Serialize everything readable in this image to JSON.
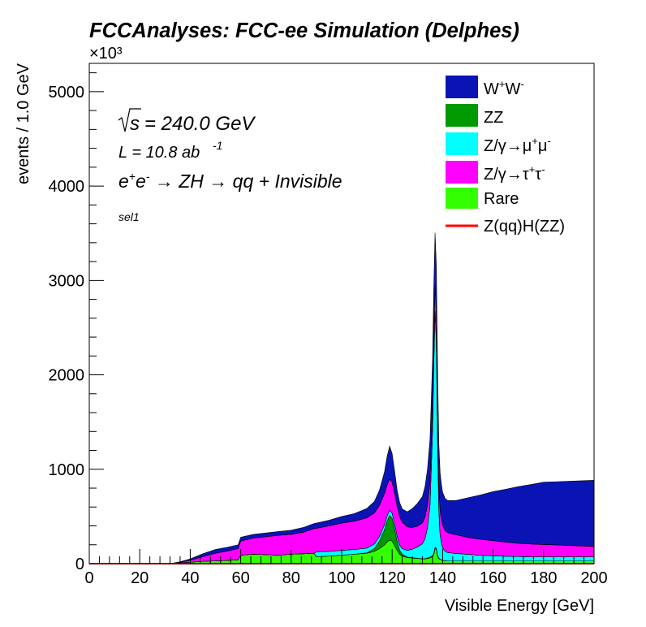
{
  "title": "FCCAnalyses: FCC-ee Simulation (Delphes)",
  "annotations": {
    "sqrt_s": "= 240.0 GeV",
    "lumi_prefix": "L = 10.8 ab",
    "lumi_exp": "-1",
    "process_plain": "+ Invisible",
    "selection": "sel1"
  },
  "colors": {
    "WW": "#0a14b4",
    "ZZ": "#009900",
    "Zmumu": "#00ffff",
    "Ztautau": "#ff00ff",
    "Rare": "#33ff00",
    "signal": "#ff0000"
  },
  "chart_data": {
    "type": "area",
    "stacked": true,
    "title": "FCCAnalyses: FCC-ee Simulation (Delphes)",
    "xlabel": "Visible Energy [GeV]",
    "ylabel": "events / 1.0 GeV",
    "y_multiplier": "×10³",
    "xlim": [
      0,
      200
    ],
    "ylim": [
      0,
      5300
    ],
    "x_ticks": [
      "0",
      "20",
      "40",
      "60",
      "80",
      "100",
      "120",
      "140",
      "160",
      "180",
      "200"
    ],
    "y_ticks": [
      "0",
      "1000",
      "2000",
      "3000",
      "4000",
      "5000"
    ],
    "grid": false,
    "legend_position": "top-right",
    "legend": [
      "W⁺W⁻",
      "ZZ",
      "Z/γ→μ⁺μ⁻",
      "Z/γ→τ⁺τ⁻",
      "Rare",
      "Z(qq)H(ZZ)"
    ],
    "x": [
      0,
      30,
      33,
      36,
      40,
      45,
      50,
      55,
      59,
      60,
      65,
      70,
      75,
      80,
      85,
      89,
      90,
      95,
      100,
      105,
      110,
      113,
      115,
      117,
      118,
      119,
      120,
      121,
      122,
      123,
      124,
      126,
      128,
      130,
      132,
      133,
      134,
      135,
      136,
      136.5,
      137,
      137.5,
      138,
      138.5,
      139,
      139.5,
      140,
      141,
      142,
      145,
      150,
      155,
      160,
      165,
      170,
      175,
      180,
      185,
      190,
      195,
      200
    ],
    "series": [
      {
        "name": "Rare",
        "key": "Rare",
        "values": [
          0,
          0,
          5,
          10,
          15,
          25,
          30,
          35,
          40,
          90,
          100,
          95,
          90,
          100,
          105,
          110,
          75,
          80,
          90,
          100,
          110,
          130,
          160,
          200,
          230,
          250,
          240,
          190,
          140,
          100,
          80,
          65,
          60,
          55,
          50,
          50,
          55,
          60,
          75,
          95,
          160,
          150,
          80,
          55,
          45,
          40,
          35,
          30,
          28,
          28,
          28,
          28,
          28,
          28,
          28,
          28,
          28,
          28,
          28,
          28,
          28
        ]
      },
      {
        "name": "ZZ",
        "key": "ZZ",
        "values": [
          0,
          0,
          0,
          0,
          0,
          0,
          0,
          0,
          0,
          0,
          0,
          0,
          0,
          0,
          0,
          0,
          0,
          0,
          0,
          0,
          5,
          30,
          80,
          160,
          220,
          260,
          240,
          170,
          90,
          40,
          20,
          5,
          3,
          2,
          2,
          3,
          5,
          8,
          10,
          15,
          15,
          10,
          5,
          3,
          2,
          2,
          1,
          1,
          0,
          0,
          0,
          0,
          0,
          0,
          0,
          0,
          0,
          0,
          0,
          0,
          0
        ]
      },
      {
        "name": "Z/γ→μ⁺μ⁻",
        "key": "Zmumu",
        "values": [
          0,
          0,
          0,
          0,
          0,
          0,
          0,
          0,
          0,
          0,
          0,
          0,
          0,
          0,
          0,
          0,
          50,
          50,
          50,
          50,
          50,
          50,
          50,
          55,
          55,
          55,
          55,
          55,
          55,
          55,
          60,
          70,
          90,
          120,
          160,
          210,
          320,
          550,
          1300,
          2000,
          2500,
          2200,
          1200,
          500,
          260,
          180,
          130,
          100,
          90,
          80,
          70,
          60,
          55,
          50,
          48,
          45,
          45,
          45,
          45,
          45,
          45
        ]
      },
      {
        "name": "Z/γ→τ⁺τ⁻",
        "key": "Ztautau",
        "values": [
          0,
          0,
          0,
          5,
          20,
          50,
          80,
          100,
          120,
          150,
          170,
          190,
          210,
          210,
          230,
          260,
          250,
          270,
          290,
          300,
          320,
          330,
          330,
          330,
          330,
          330,
          330,
          330,
          320,
          300,
          280,
          250,
          230,
          220,
          220,
          230,
          240,
          250,
          260,
          270,
          280,
          280,
          280,
          270,
          260,
          250,
          240,
          220,
          210,
          200,
          180,
          170,
          160,
          150,
          140,
          135,
          130,
          125,
          120,
          115,
          110
        ]
      },
      {
        "name": "W⁺W⁻",
        "key": "WW",
        "values": [
          0,
          0,
          0,
          5,
          15,
          30,
          40,
          40,
          40,
          40,
          40,
          40,
          40,
          45,
          50,
          55,
          55,
          60,
          70,
          80,
          100,
          120,
          160,
          230,
          300,
          350,
          300,
          230,
          170,
          150,
          140,
          160,
          200,
          240,
          280,
          320,
          380,
          450,
          500,
          550,
          550,
          530,
          490,
          440,
          400,
          370,
          350,
          340,
          340,
          360,
          420,
          470,
          520,
          560,
          600,
          630,
          660,
          670,
          680,
          690,
          700
        ]
      }
    ],
    "signal": {
      "name": "Z(qq)H(ZZ)",
      "key": "signal",
      "values": [
        0,
        0,
        0,
        0,
        0,
        0,
        0,
        0,
        0,
        0,
        0,
        0,
        0,
        0,
        0,
        0,
        0,
        0,
        0,
        0,
        0,
        0,
        0,
        0,
        0,
        0,
        0,
        0,
        0,
        0,
        0,
        0,
        0,
        0,
        0,
        0,
        0,
        0,
        0,
        0,
        0,
        0,
        0,
        0,
        0,
        0,
        0,
        0,
        0,
        0,
        0,
        0,
        0,
        0,
        0,
        0,
        0,
        0,
        0,
        0,
        0
      ]
    }
  }
}
